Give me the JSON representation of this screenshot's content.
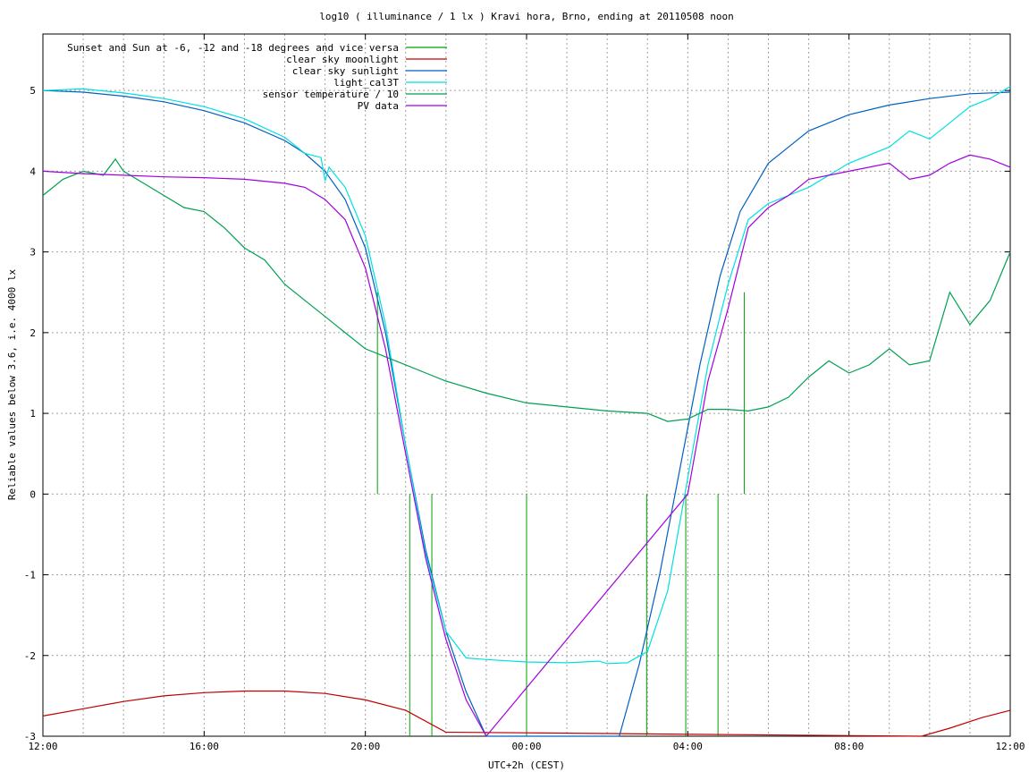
{
  "chart_data": {
    "type": "line",
    "title": "log10 ( illuminance / 1 lx ) Kravi hora, Brno, ending at 20110508 noon",
    "xlabel": "UTC+2h (CEST)",
    "ylabel": "Reliable values below 3.6, i.e. 4000 lx",
    "x_ticks": [
      "12:00",
      "16:00",
      "20:00",
      "00:00",
      "04:00",
      "08:00",
      "12:00"
    ],
    "x_tick_hours": [
      0,
      4,
      8,
      12,
      16,
      20,
      24
    ],
    "x_range_hours": [
      0,
      24
    ],
    "ylim": [
      -3,
      5.7
    ],
    "y_ticks": [
      -3,
      -2,
      -1,
      0,
      1,
      2,
      3,
      4,
      5
    ],
    "grid": true,
    "legend_position": "top-left",
    "series": [
      {
        "name": "Sunset and Sun at -6, -12 and -18 degrees and vice versa",
        "color": "#00a000",
        "style": "vlines",
        "x": [
          8.3,
          9.1,
          9.65,
          12.0,
          14.98,
          15.95,
          16.75,
          17.4
        ],
        "y_from": [
          0,
          -3,
          -3,
          -3,
          -3,
          -3,
          -3,
          0
        ],
        "y_to": [
          2.5,
          0,
          0,
          0,
          0,
          0,
          0,
          2.5
        ]
      },
      {
        "name": "clear sky moonlight",
        "color": "#c00000",
        "x": [
          0,
          1,
          2,
          3,
          4,
          5,
          6,
          7,
          8,
          9,
          10,
          21.8,
          22.5,
          23.3,
          24
        ],
        "y": [
          -2.75,
          -2.66,
          -2.57,
          -2.5,
          -2.46,
          -2.44,
          -2.44,
          -2.47,
          -2.55,
          -2.68,
          -2.95,
          -3.0,
          -2.9,
          -2.77,
          -2.68
        ]
      },
      {
        "name": "clear sky sunlight",
        "color": "#0060c0",
        "x": [
          0,
          1,
          2,
          3,
          4,
          5,
          6,
          6.5,
          7,
          7.5,
          8,
          8.5,
          9,
          9.5,
          10,
          10.5,
          11,
          14.3,
          14.8,
          15.3,
          15.8,
          16.3,
          16.8,
          17.3,
          18,
          19,
          20,
          21,
          22,
          23,
          24
        ],
        "y": [
          5.0,
          4.98,
          4.93,
          4.86,
          4.75,
          4.6,
          4.38,
          4.22,
          4.0,
          3.65,
          3.05,
          2.0,
          0.6,
          -0.7,
          -1.7,
          -2.45,
          -3.0,
          -3.0,
          -2.1,
          -1.0,
          0.3,
          1.6,
          2.7,
          3.5,
          4.1,
          4.5,
          4.7,
          4.82,
          4.9,
          4.96,
          4.98
        ]
      },
      {
        "name": "light_cal3T",
        "color": "#00e0e0",
        "x": [
          0,
          1,
          2,
          3,
          4,
          5,
          6,
          6.5,
          6.9,
          7.0,
          7.1,
          7.5,
          8,
          8.5,
          9,
          9.5,
          10,
          10.5,
          11,
          12,
          13,
          13.8,
          14,
          14.5,
          15,
          15.5,
          16,
          16.5,
          17,
          17.5,
          18,
          19,
          20,
          21,
          21.5,
          22,
          22.5,
          23,
          23.5,
          24
        ],
        "y": [
          5.0,
          5.02,
          4.97,
          4.9,
          4.8,
          4.65,
          4.42,
          4.22,
          4.17,
          3.88,
          4.05,
          3.8,
          3.2,
          2.1,
          0.6,
          -0.75,
          -1.7,
          -2.03,
          -2.05,
          -2.08,
          -2.09,
          -2.07,
          -2.1,
          -2.09,
          -1.95,
          -1.2,
          0.2,
          1.6,
          2.6,
          3.4,
          3.6,
          3.8,
          4.1,
          4.3,
          4.5,
          4.4,
          4.6,
          4.8,
          4.9,
          5.05
        ]
      },
      {
        "name": "sensor temperature / 10",
        "color": "#00a050",
        "x": [
          0,
          0.5,
          1,
          1.5,
          1.8,
          2,
          2.5,
          3,
          3.5,
          4,
          4.5,
          5,
          5.5,
          6,
          6.5,
          7,
          7.5,
          8,
          8.5,
          9,
          9.5,
          10,
          11,
          12,
          13,
          14,
          15,
          15.5,
          16,
          16.5,
          17,
          17.5,
          18,
          18.5,
          19,
          19.5,
          20,
          20.5,
          21,
          21.5,
          22,
          22.5,
          23,
          23.5,
          24
        ],
        "y": [
          3.7,
          3.9,
          4.0,
          3.95,
          4.15,
          4.0,
          3.85,
          3.7,
          3.55,
          3.5,
          3.3,
          3.05,
          2.9,
          2.6,
          2.4,
          2.2,
          2.0,
          1.8,
          1.7,
          1.6,
          1.5,
          1.4,
          1.25,
          1.13,
          1.08,
          1.03,
          1.0,
          0.9,
          0.93,
          1.05,
          1.05,
          1.03,
          1.08,
          1.2,
          1.45,
          1.65,
          1.5,
          1.6,
          1.8,
          1.6,
          1.65,
          2.5,
          2.1,
          2.4,
          3.0
        ]
      },
      {
        "name": "PV data",
        "color": "#a000e0",
        "x": [
          0,
          1,
          2,
          3,
          4,
          5,
          6,
          6.5,
          7,
          7.5,
          8,
          8.5,
          9,
          9.5,
          10,
          10.5,
          11,
          16,
          16.5,
          17,
          17.5,
          18,
          18.5,
          19,
          20,
          21,
          21.5,
          22,
          22.5,
          23,
          23.5,
          24
        ],
        "y": [
          4.0,
          3.97,
          3.95,
          3.93,
          3.92,
          3.9,
          3.85,
          3.8,
          3.65,
          3.4,
          2.8,
          1.8,
          0.5,
          -0.8,
          -1.8,
          -2.55,
          -3.0,
          0.0,
          1.4,
          2.3,
          3.3,
          3.55,
          3.7,
          3.9,
          4.0,
          4.1,
          3.9,
          3.95,
          4.1,
          4.2,
          4.15,
          4.05
        ]
      }
    ]
  }
}
